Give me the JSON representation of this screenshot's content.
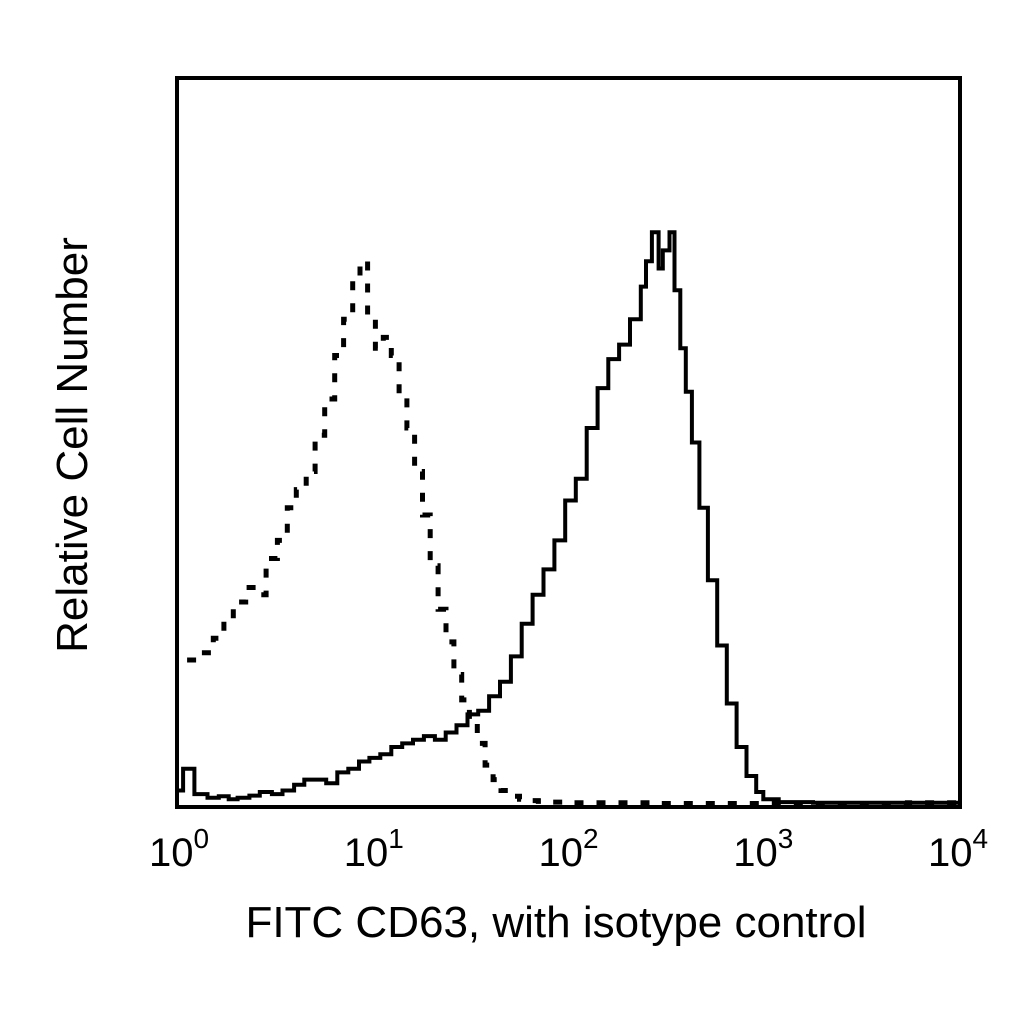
{
  "chart_data": {
    "type": "line",
    "title": "",
    "xlabel": "FITC CD63, with isotype control",
    "ylabel": "Relative Cell Number",
    "x_scale": "log",
    "xlim": [
      1,
      10000
    ],
    "ylim": [
      0,
      100
    ],
    "grid": false,
    "legend": "none",
    "x_ticks": [
      {
        "base": "10",
        "exp": "0",
        "value": 1
      },
      {
        "base": "10",
        "exp": "1",
        "value": 10
      },
      {
        "base": "10",
        "exp": "2",
        "value": 100
      },
      {
        "base": "10",
        "exp": "3",
        "value": 1000
      },
      {
        "base": "10",
        "exp": "4",
        "value": 10000
      }
    ],
    "series": [
      {
        "style": "dashed",
        "color": "#000000",
        "x": [
          1.1,
          1.3,
          1.5,
          1.7,
          1.9,
          2.2,
          2.5,
          2.8,
          3.2,
          3.6,
          4.0,
          4.5,
          5.0,
          5.6,
          6.3,
          7.0,
          7.8,
          8.5,
          9.3,
          10.2,
          11.2,
          12.3,
          13.5,
          14.8,
          16.2,
          17.8,
          19.5,
          21.4,
          23.5,
          25.8,
          28.3,
          31.0,
          34.0,
          37.3,
          41.0,
          45.0,
          50.0,
          56.0,
          62.0,
          70.0,
          80.0,
          100.0,
          150.0,
          300.0,
          1000.0,
          5500.0,
          10000.0
        ],
        "y": [
          20.0,
          21.0,
          23.0,
          25.5,
          28.0,
          30.0,
          29.0,
          34.0,
          36.5,
          41.0,
          43.5,
          46.0,
          51.0,
          56.0,
          62.0,
          67.0,
          72.5,
          75.0,
          68.0,
          63.0,
          64.5,
          62.0,
          56.5,
          52.0,
          46.0,
          40.0,
          33.0,
          27.0,
          22.5,
          18.0,
          14.5,
          11.5,
          8.5,
          5.5,
          3.5,
          2.0,
          1.2,
          0.8,
          0.6,
          0.5,
          0.4,
          0.3,
          0.3,
          0.2,
          0.2,
          0.3,
          0.2
        ]
      },
      {
        "style": "solid",
        "color": "#000000",
        "x": [
          1.0,
          1.05,
          1.2,
          1.4,
          1.6,
          1.8,
          2.0,
          2.3,
          2.6,
          3.0,
          3.4,
          3.9,
          4.4,
          5.0,
          5.7,
          6.5,
          7.4,
          8.4,
          9.5,
          10.8,
          12.3,
          14.0,
          15.9,
          18.1,
          20.6,
          23.4,
          26.6,
          30.3,
          34.4,
          39.1,
          44.5,
          50.6,
          57.5,
          65.4,
          74.4,
          84.6,
          96.2,
          109.0,
          124.0,
          141.0,
          160.0,
          182.0,
          207.0,
          235.0,
          250.0,
          268.0,
          290.0,
          305.0,
          330.0,
          350.0,
          375.0,
          400.0,
          430.0,
          470.0,
          520.0,
          580.0,
          650.0,
          730.0,
          820.0,
          920.0,
          1000.0,
          1200.0,
          1800.0,
          3000.0,
          5000.0,
          10000.0
        ],
        "y": [
          2.0,
          5.0,
          1.5,
          1.0,
          1.2,
          0.8,
          1.0,
          1.3,
          1.8,
          1.5,
          2.0,
          2.8,
          3.5,
          3.5,
          3.0,
          4.5,
          5.0,
          6.0,
          6.5,
          7.0,
          8.0,
          8.5,
          9.0,
          9.5,
          9.0,
          10.0,
          11.0,
          12.5,
          13.0,
          15.0,
          17.0,
          20.5,
          25.0,
          29.0,
          32.5,
          36.5,
          42.0,
          45.0,
          52.0,
          57.5,
          61.5,
          63.5,
          67.0,
          71.5,
          75.0,
          79.0,
          74.0,
          76.5,
          79.0,
          71.0,
          63.0,
          57.0,
          50.0,
          41.0,
          31.0,
          22.0,
          14.0,
          8.0,
          4.0,
          1.8,
          0.8,
          0.4,
          0.3,
          0.3,
          0.3,
          0.3
        ]
      }
    ]
  }
}
